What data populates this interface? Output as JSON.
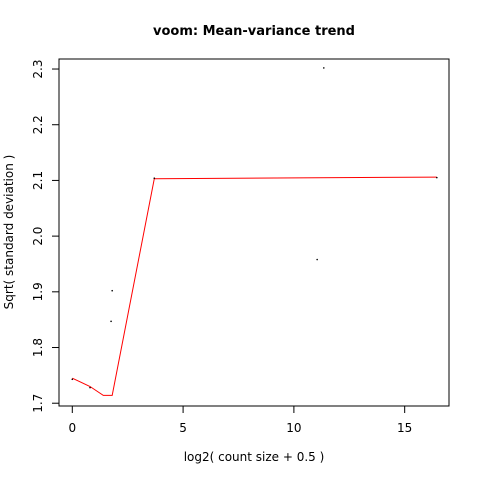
{
  "chart_data": {
    "type": "scatter",
    "title": "voom: Mean-variance trend",
    "xlabel": "log2( count size + 0.5 )",
    "ylabel": "Sqrt( standard deviation )",
    "xlim": [
      -0.6,
      17.0
    ],
    "ylim": [
      1.695,
      2.318
    ],
    "x_ticks": [
      0,
      5,
      10,
      15
    ],
    "y_ticks": [
      1.7,
      1.8,
      1.9,
      2.0,
      2.1,
      2.2,
      2.3
    ],
    "grid": false,
    "legend": "none",
    "points": [
      {
        "x": 0.0,
        "y": 1.743
      },
      {
        "x": 0.8,
        "y": 1.728
      },
      {
        "x": 1.75,
        "y": 1.847
      },
      {
        "x": 1.8,
        "y": 1.902
      },
      {
        "x": 3.7,
        "y": 2.104
      },
      {
        "x": 11.05,
        "y": 1.958
      },
      {
        "x": 11.35,
        "y": 2.302
      },
      {
        "x": 16.45,
        "y": 2.105
      }
    ],
    "trend": {
      "color": "#ff0000",
      "x": [
        0.0,
        0.8,
        1.4,
        1.8,
        3.7,
        16.45
      ],
      "y": [
        1.745,
        1.73,
        1.714,
        1.714,
        2.103,
        2.106
      ]
    }
  }
}
